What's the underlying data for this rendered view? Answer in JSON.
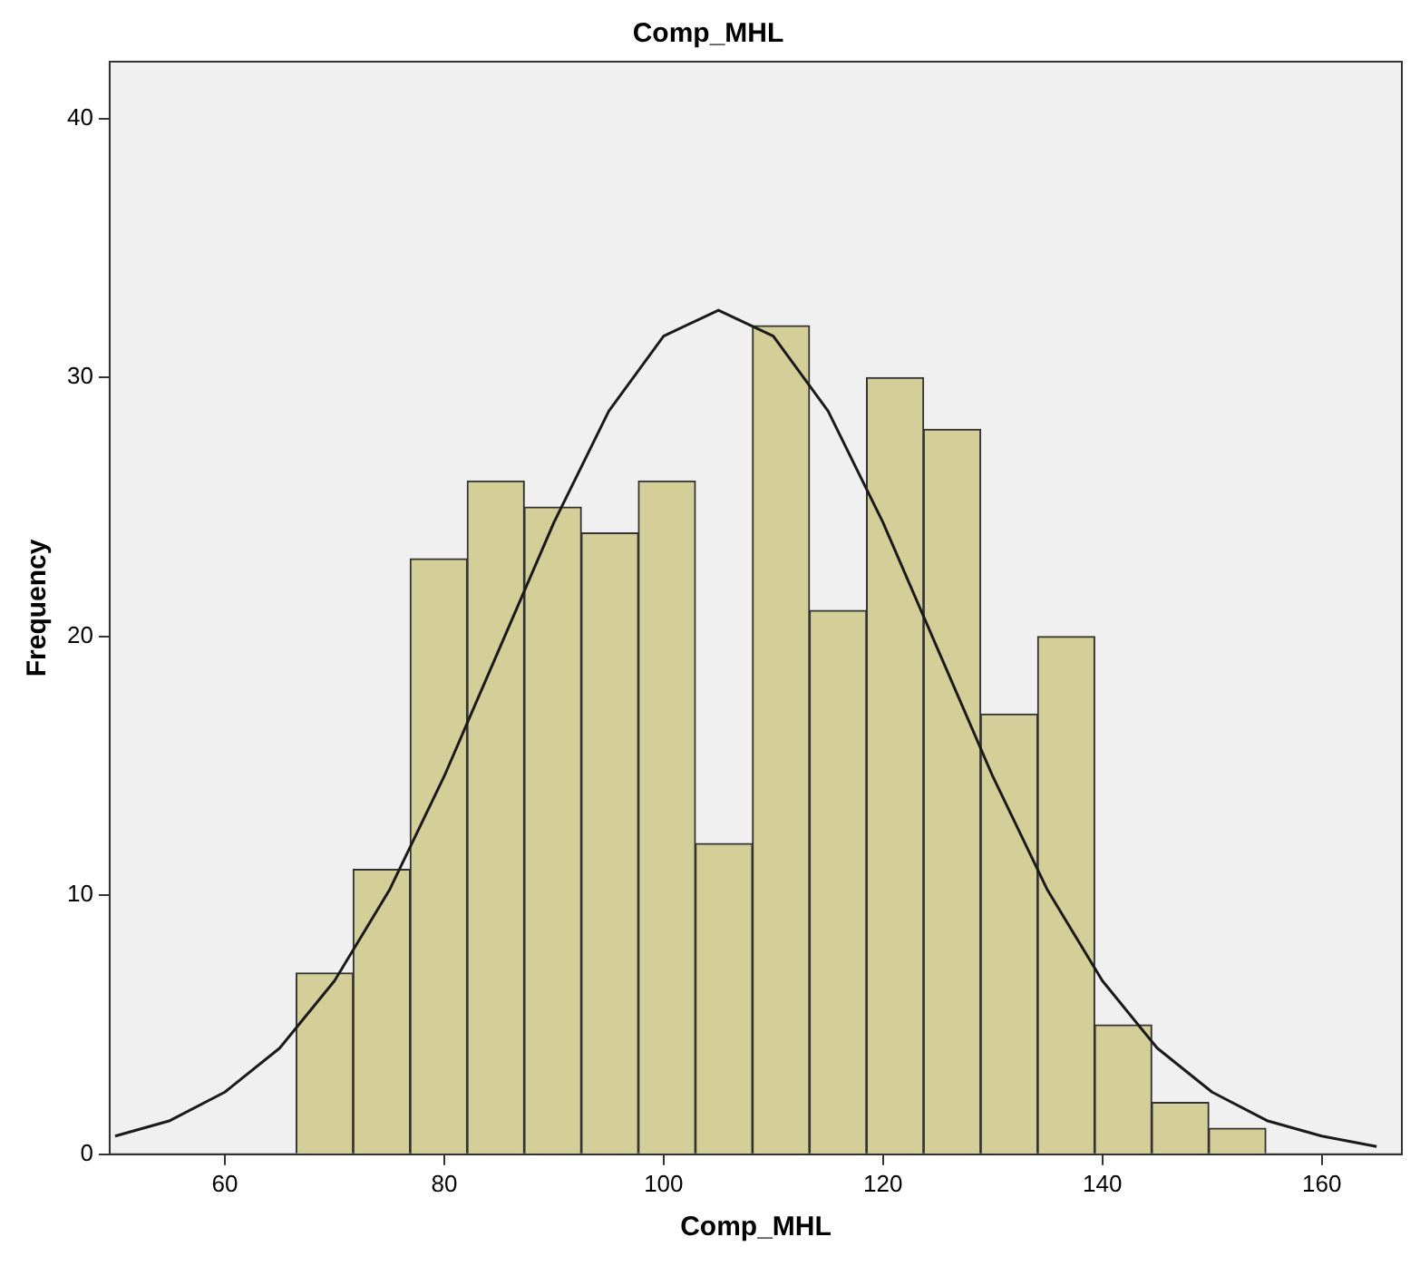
{
  "chart_data": {
    "type": "histogram",
    "title": "Comp_MHL",
    "xlabel": "Comp_MHL",
    "ylabel": "Frequency",
    "xlim": [
      49.5,
      167.3
    ],
    "xticks": [
      60,
      80,
      100,
      120,
      140,
      160
    ],
    "ylim": [
      0,
      42.2
    ],
    "yticks": [
      0,
      10,
      20,
      30,
      40
    ],
    "grid": false,
    "legend": false,
    "series": [
      {
        "type": "histogram",
        "color": "#d4cf99",
        "bins": [
          66.5,
          71.7,
          76.9,
          82.1,
          87.3,
          92.5,
          97.7,
          102.9,
          108.1,
          113.3,
          118.5,
          123.7,
          128.9,
          134.1,
          139.3,
          144.5,
          149.7,
          154.9
        ],
        "values": [
          7,
          11,
          23,
          26,
          25,
          24,
          26,
          12,
          32,
          21,
          30,
          28,
          17,
          20,
          5,
          2,
          1
        ]
      },
      {
        "type": "line",
        "color": "#1a1a1a",
        "marker": "none",
        "x": [
          50,
          55,
          60,
          65,
          70,
          75,
          80,
          85,
          90,
          95,
          100,
          105,
          110,
          115,
          120,
          125,
          130,
          135,
          140,
          145,
          150,
          155,
          160,
          165
        ],
        "values": [
          0.7,
          1.3,
          2.4,
          4.1,
          6.7,
          10.2,
          14.6,
          19.5,
          24.4,
          28.7,
          31.6,
          32.6,
          31.6,
          28.7,
          24.4,
          19.5,
          14.6,
          10.2,
          6.7,
          4.1,
          2.4,
          1.3,
          0.7,
          0.3
        ]
      }
    ]
  }
}
